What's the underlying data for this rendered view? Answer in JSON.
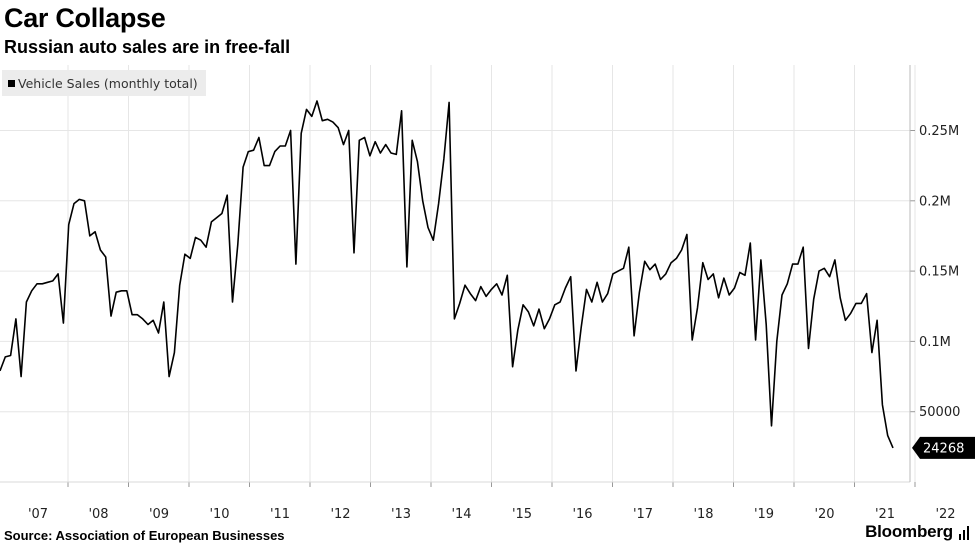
{
  "header": {
    "title": "Car Collapse",
    "subtitle": "Russian auto sales are in free-fall"
  },
  "legend": {
    "label": "Vehicle Sales (monthly total)"
  },
  "footer": {
    "source": "Source:  Association of European Businesses",
    "brand": "Bloomberg"
  },
  "colors": {
    "line": "#000000",
    "grid": "#e6e6e6",
    "last_value_bg": "#000000"
  },
  "chart_data": {
    "type": "line",
    "title": "Car Collapse",
    "subtitle": "Russian auto sales are in free-fall",
    "xlabel": "",
    "ylabel": "",
    "grid": true,
    "legend_position": "top-left",
    "y_axis_side": "right",
    "ylim": [
      0,
      300000
    ],
    "y_ticks": [
      50000,
      100000,
      150000,
      200000,
      250000
    ],
    "y_tick_labels": [
      "50000",
      "0.1M",
      "0.15M",
      "0.2M",
      "0.25M"
    ],
    "x_tick_labels": [
      "'07",
      "'08",
      "'09",
      "'10",
      "'11",
      "'12",
      "'13",
      "'14",
      "'15",
      "'16",
      "'17",
      "'18",
      "'19",
      "'20",
      "'21",
      "'22"
    ],
    "last_value_label": "24268",
    "series": [
      {
        "name": "Vehicle Sales (monthly total)",
        "start": "2007-01",
        "frequency": "monthly",
        "values": [
          79000,
          89000,
          90000,
          116000,
          75000,
          128000,
          136000,
          141000,
          141000,
          142000,
          143000,
          148000,
          113000,
          183000,
          198000,
          201000,
          200000,
          175000,
          178000,
          165000,
          160000,
          118000,
          135000,
          136000,
          136000,
          119000,
          119000,
          116000,
          112000,
          115000,
          106000,
          128000,
          75000,
          92000,
          140000,
          162000,
          159000,
          174000,
          172000,
          167000,
          185000,
          188000,
          191000,
          204000,
          128000,
          169000,
          224000,
          235000,
          236000,
          245000,
          225000,
          225000,
          235000,
          239000,
          239000,
          250000,
          155000,
          248000,
          265000,
          260000,
          271000,
          257000,
          258000,
          256000,
          252000,
          240000,
          250000,
          163000,
          243000,
          245000,
          232000,
          242000,
          234000,
          240000,
          234000,
          233000,
          264000,
          153000,
          243000,
          228000,
          200000,
          181000,
          172000,
          198000,
          230000,
          270000,
          116000,
          127000,
          140000,
          134000,
          129000,
          139000,
          132000,
          137000,
          141000,
          133000,
          147000,
          82000,
          108000,
          126000,
          121000,
          111000,
          123000,
          109000,
          116000,
          126000,
          128000,
          138000,
          146000,
          79000,
          110000,
          137000,
          128000,
          142000,
          128000,
          134000,
          148000,
          150000,
          152000,
          167000,
          104000,
          135000,
          157000,
          151000,
          155000,
          144000,
          148000,
          156000,
          159000,
          165000,
          176000,
          101000,
          124000,
          156000,
          144000,
          148000,
          131000,
          145000,
          133000,
          138000,
          149000,
          147000,
          170000,
          101000,
          158000,
          112000,
          40000,
          100000,
          133000,
          141000,
          155000,
          155000,
          167000,
          95000,
          130000,
          150000,
          152000,
          146000,
          158000,
          131000,
          115000,
          120000,
          127000,
          127000,
          134000,
          92000,
          115000,
          55000,
          33000,
          24268
        ]
      }
    ]
  }
}
